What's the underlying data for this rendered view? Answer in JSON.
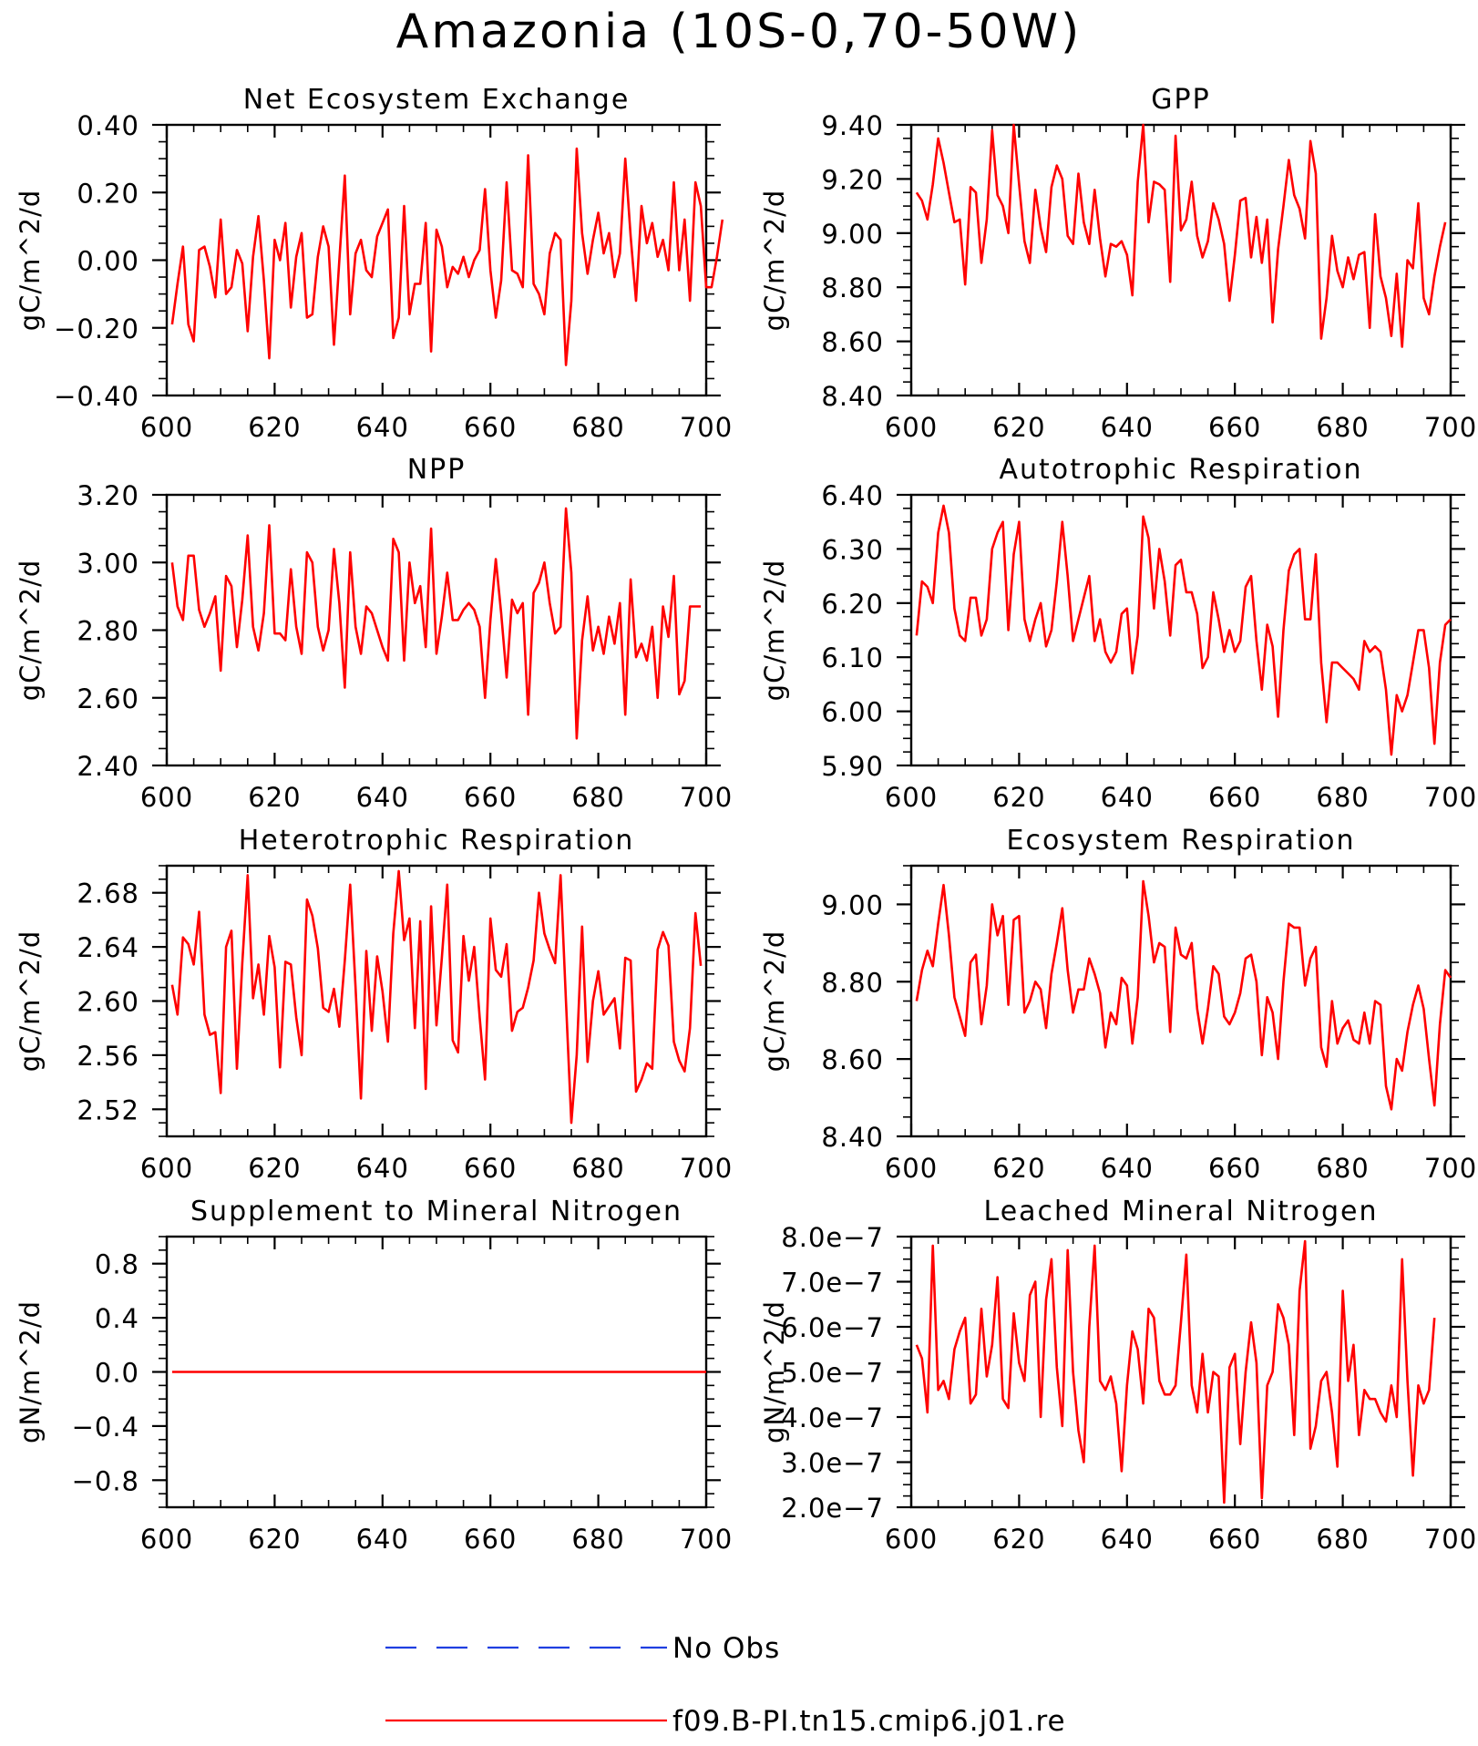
{
  "title": "Amazonia (10S-0,70-50W)",
  "legend": [
    {
      "label": "No Obs",
      "color": "#1f3fe0",
      "style": "dashed"
    },
    {
      "label": "f09.B-PI.tn15.cmip6.j01.re",
      "color": "#ff0000",
      "style": "solid"
    }
  ],
  "chart_data": [
    {
      "type": "line",
      "title": "Net Ecosystem Exchange",
      "ylabel": "gC/m^2/d",
      "xlim": [
        600,
        700
      ],
      "ylim": [
        -0.4,
        0.4
      ],
      "yticks": [
        "-0.40",
        "-0.20",
        "0.00",
        "0.20",
        "0.40"
      ],
      "xticks": [
        "600",
        "620",
        "640",
        "660",
        "680",
        "700"
      ],
      "series": [
        {
          "color": "#ff0000",
          "x_start": 601,
          "values": [
            -0.19,
            -0.07,
            0.04,
            -0.19,
            -0.24,
            0.03,
            0.04,
            -0.02,
            -0.11,
            0.12,
            -0.1,
            -0.08,
            0.03,
            -0.01,
            -0.21,
            0.01,
            0.13,
            -0.06,
            -0.29,
            0.06,
            0.0,
            0.11,
            -0.14,
            0.01,
            0.08,
            -0.17,
            -0.16,
            0.01,
            0.1,
            0.04,
            -0.25,
            0.0,
            0.25,
            -0.16,
            0.02,
            0.06,
            -0.03,
            -0.05,
            0.07,
            0.11,
            0.15,
            -0.23,
            -0.17,
            0.16,
            -0.16,
            -0.07,
            -0.07,
            0.11,
            -0.27,
            0.09,
            0.04,
            -0.08,
            -0.02,
            -0.04,
            0.01,
            -0.05,
            0.0,
            0.03,
            0.21,
            -0.03,
            -0.17,
            -0.06,
            0.23,
            -0.03,
            -0.04,
            -0.08,
            0.31,
            -0.07,
            -0.1,
            -0.16,
            0.02,
            0.08,
            0.06,
            -0.31,
            -0.12,
            0.33,
            0.08,
            -0.04,
            0.06,
            0.14,
            0.02,
            0.08,
            -0.05,
            0.02,
            0.3,
            0.07,
            -0.12,
            0.16,
            0.05,
            0.11,
            0.01,
            0.06,
            -0.03,
            0.23,
            -0.03,
            0.12,
            -0.12,
            0.23,
            0.16,
            -0.08,
            -0.08,
            0.01,
            0.12
          ]
        }
      ]
    },
    {
      "type": "line",
      "title": "GPP",
      "ylabel": "gC/m^2/d",
      "xlim": [
        600,
        700
      ],
      "ylim": [
        8.4,
        9.4
      ],
      "yticks": [
        "8.40",
        "8.60",
        "8.80",
        "9.00",
        "9.20",
        "9.40"
      ],
      "xticks": [
        "600",
        "620",
        "640",
        "660",
        "680",
        "700"
      ],
      "series": [
        {
          "color": "#ff0000",
          "x_start": 601,
          "values": [
            9.15,
            9.12,
            9.05,
            9.18,
            9.35,
            9.26,
            9.15,
            9.04,
            9.05,
            8.81,
            9.17,
            9.15,
            8.89,
            9.05,
            9.38,
            9.14,
            9.1,
            9.0,
            9.4,
            9.18,
            8.97,
            8.89,
            9.16,
            9.02,
            8.93,
            9.17,
            9.25,
            9.2,
            8.99,
            8.96,
            9.22,
            9.04,
            8.96,
            9.16,
            8.98,
            8.84,
            8.96,
            8.95,
            8.97,
            8.92,
            8.77,
            9.19,
            9.4,
            9.04,
            9.19,
            9.18,
            9.16,
            8.82,
            9.36,
            9.01,
            9.05,
            9.19,
            8.99,
            8.91,
            8.97,
            9.11,
            9.05,
            8.96,
            8.75,
            8.92,
            9.12,
            9.13,
            8.91,
            9.06,
            8.89,
            9.05,
            8.67,
            8.94,
            9.1,
            9.27,
            9.14,
            9.09,
            8.98,
            9.34,
            9.22,
            8.61,
            8.76,
            8.99,
            8.86,
            8.8,
            8.91,
            8.83,
            8.92,
            8.93,
            8.65,
            9.07,
            8.84,
            8.76,
            8.62,
            8.85,
            8.58,
            8.9,
            8.87,
            9.11,
            8.76,
            8.7,
            8.84,
            8.95,
            9.04
          ]
        }
      ]
    },
    {
      "type": "line",
      "title": "NPP",
      "ylabel": "gC/m^2/d",
      "xlim": [
        600,
        700
      ],
      "ylim": [
        2.4,
        3.2
      ],
      "yticks": [
        "2.40",
        "2.60",
        "2.80",
        "3.00",
        "3.20"
      ],
      "xticks": [
        "600",
        "620",
        "640",
        "660",
        "680",
        "700"
      ],
      "series": [
        {
          "color": "#ff0000",
          "x_start": 601,
          "values": [
            3.0,
            2.87,
            2.83,
            3.02,
            3.02,
            2.86,
            2.81,
            2.85,
            2.9,
            2.68,
            2.96,
            2.93,
            2.75,
            2.89,
            3.08,
            2.81,
            2.74,
            2.85,
            3.11,
            2.79,
            2.79,
            2.77,
            2.98,
            2.81,
            2.73,
            3.03,
            3.0,
            2.81,
            2.74,
            2.8,
            3.04,
            2.88,
            2.63,
            3.03,
            2.81,
            2.73,
            2.87,
            2.85,
            2.8,
            2.75,
            2.71,
            3.07,
            3.03,
            2.71,
            3.0,
            2.88,
            2.93,
            2.75,
            3.1,
            2.73,
            2.84,
            2.97,
            2.83,
            2.83,
            2.86,
            2.88,
            2.86,
            2.81,
            2.6,
            2.83,
            3.01,
            2.85,
            2.66,
            2.89,
            2.85,
            2.88,
            2.55,
            2.91,
            2.94,
            3.0,
            2.88,
            2.79,
            2.81,
            3.16,
            2.97,
            2.48,
            2.77,
            2.9,
            2.74,
            2.81,
            2.73,
            2.84,
            2.76,
            2.88,
            2.55,
            2.95,
            2.72,
            2.76,
            2.71,
            2.81,
            2.6,
            2.87,
            2.78,
            2.96,
            2.61,
            2.65,
            2.87,
            2.87,
            2.87
          ]
        }
      ]
    },
    {
      "type": "line",
      "title": "Autotrophic Respiration",
      "ylabel": "gC/m^2/d",
      "xlim": [
        600,
        700
      ],
      "ylim": [
        5.9,
        6.4
      ],
      "yticks": [
        "5.90",
        "6.00",
        "6.10",
        "6.20",
        "6.30",
        "6.40"
      ],
      "xticks": [
        "600",
        "620",
        "640",
        "660",
        "680",
        "700"
      ],
      "series": [
        {
          "color": "#ff0000",
          "x_start": 601,
          "values": [
            6.14,
            6.24,
            6.23,
            6.2,
            6.33,
            6.38,
            6.33,
            6.19,
            6.14,
            6.13,
            6.21,
            6.21,
            6.14,
            6.17,
            6.3,
            6.33,
            6.35,
            6.15,
            6.29,
            6.35,
            6.17,
            6.13,
            6.17,
            6.2,
            6.12,
            6.15,
            6.24,
            6.35,
            6.25,
            6.13,
            6.17,
            6.21,
            6.25,
            6.13,
            6.17,
            6.11,
            6.09,
            6.11,
            6.18,
            6.19,
            6.07,
            6.14,
            6.36,
            6.32,
            6.19,
            6.3,
            6.24,
            6.14,
            6.27,
            6.28,
            6.22,
            6.22,
            6.18,
            6.08,
            6.1,
            6.22,
            6.17,
            6.11,
            6.15,
            6.11,
            6.13,
            6.23,
            6.25,
            6.13,
            6.04,
            6.16,
            6.12,
            5.99,
            6.15,
            6.26,
            6.29,
            6.3,
            6.17,
            6.17,
            6.29,
            6.09,
            5.98,
            6.09,
            6.09,
            6.08,
            6.07,
            6.06,
            6.04,
            6.13,
            6.11,
            6.12,
            6.11,
            6.04,
            5.92,
            6.03,
            6.0,
            6.03,
            6.09,
            6.15,
            6.15,
            6.08,
            5.94,
            6.09,
            6.16,
            6.17
          ]
        }
      ]
    },
    {
      "type": "line",
      "title": "Heterotrophic Respiration",
      "ylabel": "gC/m^2/d",
      "xlim": [
        600,
        700
      ],
      "ylim": [
        2.5,
        2.7
      ],
      "yticks": [
        "2.52",
        "2.56",
        "2.60",
        "2.64",
        "2.68"
      ],
      "xticks": [
        "600",
        "620",
        "640",
        "660",
        "680",
        "700"
      ],
      "series": [
        {
          "color": "#ff0000",
          "x_start": 601,
          "values": [
            2.612,
            2.59,
            2.647,
            2.642,
            2.627,
            2.666,
            2.59,
            2.575,
            2.577,
            2.532,
            2.64,
            2.652,
            2.55,
            2.628,
            2.693,
            2.602,
            2.627,
            2.59,
            2.648,
            2.625,
            2.551,
            2.629,
            2.627,
            2.588,
            2.56,
            2.675,
            2.663,
            2.639,
            2.595,
            2.592,
            2.609,
            2.581,
            2.63,
            2.686,
            2.61,
            2.528,
            2.637,
            2.578,
            2.633,
            2.607,
            2.57,
            2.65,
            2.696,
            2.645,
            2.661,
            2.58,
            2.659,
            2.535,
            2.67,
            2.582,
            2.632,
            2.686,
            2.571,
            2.562,
            2.648,
            2.615,
            2.64,
            2.588,
            2.542,
            2.661,
            2.623,
            2.618,
            2.642,
            2.578,
            2.592,
            2.595,
            2.61,
            2.63,
            2.68,
            2.65,
            2.638,
            2.628,
            2.693,
            2.6,
            2.51,
            2.56,
            2.655,
            2.555,
            2.6,
            2.622,
            2.59,
            2.596,
            2.602,
            2.565,
            2.632,
            2.63,
            2.533,
            2.542,
            2.554,
            2.55,
            2.638,
            2.651,
            2.641,
            2.57,
            2.556,
            2.548,
            2.58,
            2.665,
            2.626
          ]
        }
      ]
    },
    {
      "type": "line",
      "title": "Ecosystem Respiration",
      "ylabel": "gC/m^2/d",
      "xlim": [
        600,
        700
      ],
      "ylim": [
        8.4,
        9.1
      ],
      "yticks": [
        "8.40",
        "8.60",
        "8.80",
        "9.00"
      ],
      "xticks": [
        "600",
        "620",
        "640",
        "660",
        "680",
        "700"
      ],
      "series": [
        {
          "color": "#ff0000",
          "x_start": 601,
          "values": [
            8.75,
            8.83,
            8.88,
            8.84,
            8.95,
            9.05,
            8.92,
            8.76,
            8.71,
            8.66,
            8.85,
            8.87,
            8.69,
            8.79,
            9.0,
            8.92,
            8.97,
            8.74,
            8.96,
            8.97,
            8.72,
            8.75,
            8.8,
            8.78,
            8.68,
            8.82,
            8.9,
            8.99,
            8.83,
            8.72,
            8.78,
            8.78,
            8.86,
            8.82,
            8.77,
            8.63,
            8.72,
            8.69,
            8.81,
            8.79,
            8.64,
            8.76,
            9.06,
            8.97,
            8.85,
            8.9,
            8.89,
            8.67,
            8.94,
            8.87,
            8.86,
            8.9,
            8.73,
            8.64,
            8.73,
            8.84,
            8.82,
            8.71,
            8.69,
            8.72,
            8.77,
            8.86,
            8.87,
            8.8,
            8.61,
            8.76,
            8.72,
            8.6,
            8.8,
            8.95,
            8.94,
            8.94,
            8.79,
            8.86,
            8.89,
            8.63,
            8.58,
            8.75,
            8.64,
            8.68,
            8.7,
            8.65,
            8.64,
            8.72,
            8.64,
            8.75,
            8.74,
            8.53,
            8.47,
            8.6,
            8.57,
            8.67,
            8.74,
            8.79,
            8.73,
            8.6,
            8.48,
            8.69,
            8.83,
            8.81
          ]
        }
      ]
    },
    {
      "type": "line",
      "title": "Supplement to Mineral Nitrogen",
      "ylabel": "gN/m^2/d",
      "xlim": [
        600,
        700
      ],
      "ylim": [
        -1.0,
        1.0
      ],
      "yticks": [
        "-0.8",
        "-0.4",
        "0.0",
        "0.4",
        "0.8"
      ],
      "xticks": [
        "600",
        "620",
        "640",
        "660",
        "680",
        "700"
      ],
      "series": [
        {
          "color": "#ff0000",
          "x_start": 601,
          "constant": 0.0,
          "x_end": 700
        }
      ]
    },
    {
      "type": "line",
      "title": "Leached Mineral Nitrogen",
      "ylabel": "gN/m^2/d",
      "xlim": [
        600,
        700
      ],
      "ylim": [
        2e-07,
        8e-07
      ],
      "yticks": [
        "2.0e-7",
        "3.0e-7",
        "4.0e-7",
        "5.0e-7",
        "6.0e-7",
        "7.0e-7",
        "8.0e-7"
      ],
      "xticks": [
        "600",
        "620",
        "640",
        "660",
        "680",
        "700"
      ],
      "series": [
        {
          "color": "#ff0000",
          "x_start": 601,
          "values": [
            5.6e-07,
            5.3e-07,
            4.1e-07,
            7.8e-07,
            4.6e-07,
            4.8e-07,
            4.4e-07,
            5.5e-07,
            5.9e-07,
            6.2e-07,
            4.3e-07,
            4.5e-07,
            6.4e-07,
            4.9e-07,
            5.6e-07,
            7.1e-07,
            4.4e-07,
            4.2e-07,
            6.3e-07,
            5.2e-07,
            4.8e-07,
            6.7e-07,
            7e-07,
            4e-07,
            6.6e-07,
            7.5e-07,
            5.1e-07,
            3.8e-07,
            7.7e-07,
            5e-07,
            3.7e-07,
            3e-07,
            6e-07,
            7.8e-07,
            4.8e-07,
            4.6e-07,
            4.9e-07,
            4.3e-07,
            2.8e-07,
            4.7e-07,
            5.9e-07,
            5.5e-07,
            4.3e-07,
            6.4e-07,
            6.2e-07,
            4.8e-07,
            4.5e-07,
            4.5e-07,
            4.7e-07,
            6.1e-07,
            7.6e-07,
            4.7e-07,
            4.1e-07,
            5.4e-07,
            4.1e-07,
            5e-07,
            4.9e-07,
            2.1e-07,
            5.1e-07,
            5.4e-07,
            3.4e-07,
            5e-07,
            6.1e-07,
            5.2e-07,
            2.2e-07,
            4.7e-07,
            5e-07,
            6.5e-07,
            6.2e-07,
            5.6e-07,
            3.6e-07,
            6.8e-07,
            7.9e-07,
            3.3e-07,
            3.8e-07,
            4.8e-07,
            5e-07,
            4.1e-07,
            2.9e-07,
            6.8e-07,
            4.8e-07,
            5.6e-07,
            3.6e-07,
            4.6e-07,
            4.4e-07,
            4.4e-07,
            4.1e-07,
            3.9e-07,
            4.7e-07,
            4e-07,
            7.5e-07,
            4.8e-07,
            2.7e-07,
            4.7e-07,
            4.3e-07,
            4.6e-07,
            6.2e-07
          ]
        }
      ]
    }
  ]
}
